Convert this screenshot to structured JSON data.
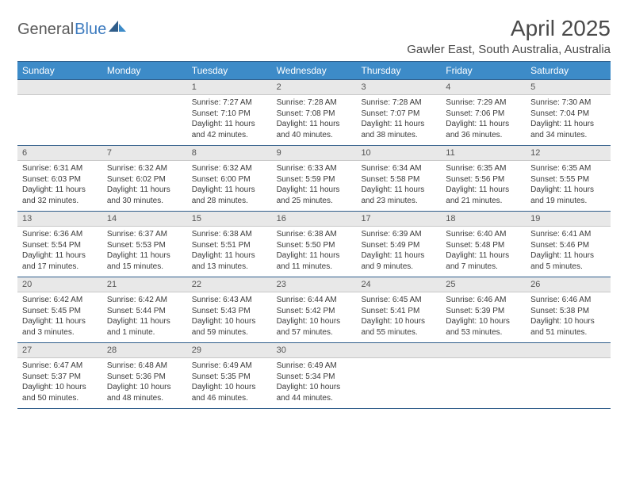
{
  "brand": {
    "part1": "General",
    "part2": "Blue",
    "accent_color": "#3d8bc8"
  },
  "title": "April 2025",
  "location": "Gawler East, South Australia, Australia",
  "colors": {
    "header_bg": "#3d8bc8",
    "header_border": "#2f5d8a",
    "daynum_bg": "#e8e8e8",
    "text": "#3a3a3a"
  },
  "day_names": [
    "Sunday",
    "Monday",
    "Tuesday",
    "Wednesday",
    "Thursday",
    "Friday",
    "Saturday"
  ],
  "weeks": [
    [
      null,
      null,
      {
        "n": "1",
        "sr": "Sunrise: 7:27 AM",
        "ss": "Sunset: 7:10 PM",
        "dl": "Daylight: 11 hours and 42 minutes."
      },
      {
        "n": "2",
        "sr": "Sunrise: 7:28 AM",
        "ss": "Sunset: 7:08 PM",
        "dl": "Daylight: 11 hours and 40 minutes."
      },
      {
        "n": "3",
        "sr": "Sunrise: 7:28 AM",
        "ss": "Sunset: 7:07 PM",
        "dl": "Daylight: 11 hours and 38 minutes."
      },
      {
        "n": "4",
        "sr": "Sunrise: 7:29 AM",
        "ss": "Sunset: 7:06 PM",
        "dl": "Daylight: 11 hours and 36 minutes."
      },
      {
        "n": "5",
        "sr": "Sunrise: 7:30 AM",
        "ss": "Sunset: 7:04 PM",
        "dl": "Daylight: 11 hours and 34 minutes."
      }
    ],
    [
      {
        "n": "6",
        "sr": "Sunrise: 6:31 AM",
        "ss": "Sunset: 6:03 PM",
        "dl": "Daylight: 11 hours and 32 minutes."
      },
      {
        "n": "7",
        "sr": "Sunrise: 6:32 AM",
        "ss": "Sunset: 6:02 PM",
        "dl": "Daylight: 11 hours and 30 minutes."
      },
      {
        "n": "8",
        "sr": "Sunrise: 6:32 AM",
        "ss": "Sunset: 6:00 PM",
        "dl": "Daylight: 11 hours and 28 minutes."
      },
      {
        "n": "9",
        "sr": "Sunrise: 6:33 AM",
        "ss": "Sunset: 5:59 PM",
        "dl": "Daylight: 11 hours and 25 minutes."
      },
      {
        "n": "10",
        "sr": "Sunrise: 6:34 AM",
        "ss": "Sunset: 5:58 PM",
        "dl": "Daylight: 11 hours and 23 minutes."
      },
      {
        "n": "11",
        "sr": "Sunrise: 6:35 AM",
        "ss": "Sunset: 5:56 PM",
        "dl": "Daylight: 11 hours and 21 minutes."
      },
      {
        "n": "12",
        "sr": "Sunrise: 6:35 AM",
        "ss": "Sunset: 5:55 PM",
        "dl": "Daylight: 11 hours and 19 minutes."
      }
    ],
    [
      {
        "n": "13",
        "sr": "Sunrise: 6:36 AM",
        "ss": "Sunset: 5:54 PM",
        "dl": "Daylight: 11 hours and 17 minutes."
      },
      {
        "n": "14",
        "sr": "Sunrise: 6:37 AM",
        "ss": "Sunset: 5:53 PM",
        "dl": "Daylight: 11 hours and 15 minutes."
      },
      {
        "n": "15",
        "sr": "Sunrise: 6:38 AM",
        "ss": "Sunset: 5:51 PM",
        "dl": "Daylight: 11 hours and 13 minutes."
      },
      {
        "n": "16",
        "sr": "Sunrise: 6:38 AM",
        "ss": "Sunset: 5:50 PM",
        "dl": "Daylight: 11 hours and 11 minutes."
      },
      {
        "n": "17",
        "sr": "Sunrise: 6:39 AM",
        "ss": "Sunset: 5:49 PM",
        "dl": "Daylight: 11 hours and 9 minutes."
      },
      {
        "n": "18",
        "sr": "Sunrise: 6:40 AM",
        "ss": "Sunset: 5:48 PM",
        "dl": "Daylight: 11 hours and 7 minutes."
      },
      {
        "n": "19",
        "sr": "Sunrise: 6:41 AM",
        "ss": "Sunset: 5:46 PM",
        "dl": "Daylight: 11 hours and 5 minutes."
      }
    ],
    [
      {
        "n": "20",
        "sr": "Sunrise: 6:42 AM",
        "ss": "Sunset: 5:45 PM",
        "dl": "Daylight: 11 hours and 3 minutes."
      },
      {
        "n": "21",
        "sr": "Sunrise: 6:42 AM",
        "ss": "Sunset: 5:44 PM",
        "dl": "Daylight: 11 hours and 1 minute."
      },
      {
        "n": "22",
        "sr": "Sunrise: 6:43 AM",
        "ss": "Sunset: 5:43 PM",
        "dl": "Daylight: 10 hours and 59 minutes."
      },
      {
        "n": "23",
        "sr": "Sunrise: 6:44 AM",
        "ss": "Sunset: 5:42 PM",
        "dl": "Daylight: 10 hours and 57 minutes."
      },
      {
        "n": "24",
        "sr": "Sunrise: 6:45 AM",
        "ss": "Sunset: 5:41 PM",
        "dl": "Daylight: 10 hours and 55 minutes."
      },
      {
        "n": "25",
        "sr": "Sunrise: 6:46 AM",
        "ss": "Sunset: 5:39 PM",
        "dl": "Daylight: 10 hours and 53 minutes."
      },
      {
        "n": "26",
        "sr": "Sunrise: 6:46 AM",
        "ss": "Sunset: 5:38 PM",
        "dl": "Daylight: 10 hours and 51 minutes."
      }
    ],
    [
      {
        "n": "27",
        "sr": "Sunrise: 6:47 AM",
        "ss": "Sunset: 5:37 PM",
        "dl": "Daylight: 10 hours and 50 minutes."
      },
      {
        "n": "28",
        "sr": "Sunrise: 6:48 AM",
        "ss": "Sunset: 5:36 PM",
        "dl": "Daylight: 10 hours and 48 minutes."
      },
      {
        "n": "29",
        "sr": "Sunrise: 6:49 AM",
        "ss": "Sunset: 5:35 PM",
        "dl": "Daylight: 10 hours and 46 minutes."
      },
      {
        "n": "30",
        "sr": "Sunrise: 6:49 AM",
        "ss": "Sunset: 5:34 PM",
        "dl": "Daylight: 10 hours and 44 minutes."
      },
      null,
      null,
      null
    ]
  ]
}
